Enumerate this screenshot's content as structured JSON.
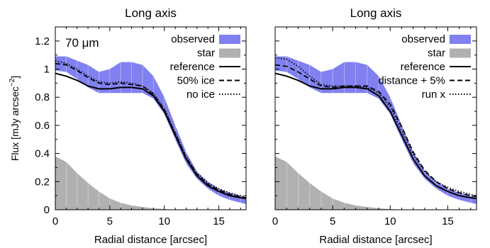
{
  "figure": {
    "colors": {
      "observed": "#8080f0",
      "star": "#b0b0b0",
      "lines": "#000000"
    }
  },
  "chart_data": [
    {
      "type": "line",
      "title": "Long axis",
      "annotation": "70 μm",
      "xlabel": "Radial distance [arcsec]",
      "ylabel": "Flux [mJy arcsec",
      "ylabel_sup": "−2",
      "ylabel_close": "]",
      "xlim": [
        0,
        17.5
      ],
      "ylim": [
        0,
        1.3
      ],
      "xticks": [
        0,
        5,
        10,
        15
      ],
      "xtick_labels": [
        "0",
        "5",
        "10",
        "15"
      ],
      "yticks": [
        0,
        0.2,
        0.4,
        0.6,
        0.8,
        1,
        1.2
      ],
      "ytick_labels": [
        "0",
        "0.2",
        "0.4",
        "0.6",
        "0.8",
        "1",
        "1.2"
      ],
      "legend_position": "top-right",
      "x": [
        0,
        1,
        2,
        3,
        4,
        5,
        6,
        7,
        8,
        9,
        10,
        11,
        12,
        13,
        14,
        15,
        16,
        17,
        17.5
      ],
      "bands": [
        {
          "name": "observed",
          "style": "band",
          "lower": [
            0.99,
            0.98,
            0.93,
            0.87,
            0.83,
            0.83,
            0.83,
            0.83,
            0.83,
            0.79,
            0.68,
            0.5,
            0.33,
            0.22,
            0.15,
            0.1,
            0.07,
            0.05,
            0.04
          ],
          "upper": [
            1.09,
            1.09,
            1.06,
            1.03,
            0.98,
            1.0,
            1.05,
            1.05,
            1.03,
            0.95,
            0.8,
            0.6,
            0.41,
            0.27,
            0.2,
            0.15,
            0.12,
            0.1,
            0.09
          ]
        },
        {
          "name": "star",
          "style": "fill",
          "upper": [
            0.38,
            0.34,
            0.26,
            0.19,
            0.13,
            0.08,
            0.05,
            0.03,
            0.02,
            0.01,
            0.005,
            0,
            0,
            0,
            0,
            0,
            0,
            0,
            0
          ]
        }
      ],
      "series": [
        {
          "name": "reference",
          "style": "solid",
          "values": [
            0.97,
            0.95,
            0.92,
            0.88,
            0.86,
            0.86,
            0.87,
            0.87,
            0.86,
            0.81,
            0.7,
            0.53,
            0.36,
            0.24,
            0.17,
            0.13,
            0.1,
            0.085,
            0.08
          ]
        },
        {
          "name": "50% ice",
          "style": "dashed",
          "values": [
            1.04,
            1.03,
            0.99,
            0.94,
            0.9,
            0.89,
            0.9,
            0.89,
            0.88,
            0.82,
            0.71,
            0.54,
            0.37,
            0.25,
            0.18,
            0.14,
            0.11,
            0.09,
            0.085
          ]
        },
        {
          "name": "no ice",
          "style": "dotted",
          "values": [
            1.06,
            1.04,
            1.0,
            0.95,
            0.91,
            0.9,
            0.91,
            0.9,
            0.88,
            0.83,
            0.72,
            0.55,
            0.38,
            0.26,
            0.19,
            0.15,
            0.12,
            0.1,
            0.09
          ]
        }
      ]
    },
    {
      "type": "line",
      "title": "Long axis",
      "xlabel": "Radial distance [arcsec]",
      "xlim": [
        0,
        17.5
      ],
      "ylim": [
        0,
        1.3
      ],
      "xticks": [
        0,
        5,
        10,
        15
      ],
      "xtick_labels": [
        "0",
        "5",
        "10",
        "15"
      ],
      "yticks": [
        0,
        0.2,
        0.4,
        0.6,
        0.8,
        1,
        1.2
      ],
      "legend_position": "top-right",
      "x": [
        0,
        1,
        2,
        3,
        4,
        5,
        6,
        7,
        8,
        9,
        10,
        11,
        12,
        13,
        14,
        15,
        16,
        17,
        17.5
      ],
      "bands": [
        {
          "name": "observed",
          "style": "band",
          "lower": [
            0.99,
            0.98,
            0.93,
            0.87,
            0.83,
            0.83,
            0.83,
            0.83,
            0.83,
            0.79,
            0.68,
            0.5,
            0.33,
            0.22,
            0.15,
            0.1,
            0.07,
            0.05,
            0.04
          ],
          "upper": [
            1.09,
            1.09,
            1.06,
            1.03,
            0.98,
            1.0,
            1.05,
            1.05,
            1.03,
            0.95,
            0.8,
            0.6,
            0.41,
            0.27,
            0.2,
            0.15,
            0.12,
            0.1,
            0.09
          ]
        },
        {
          "name": "star",
          "style": "fill",
          "upper": [
            0.38,
            0.34,
            0.26,
            0.19,
            0.13,
            0.08,
            0.05,
            0.03,
            0.02,
            0.01,
            0.005,
            0,
            0,
            0,
            0,
            0,
            0,
            0,
            0
          ]
        }
      ],
      "series": [
        {
          "name": "reference",
          "style": "solid",
          "values": [
            0.97,
            0.95,
            0.92,
            0.88,
            0.86,
            0.86,
            0.87,
            0.87,
            0.86,
            0.81,
            0.7,
            0.53,
            0.36,
            0.24,
            0.17,
            0.13,
            0.1,
            0.085,
            0.08
          ]
        },
        {
          "name": "distance + 5%",
          "style": "dashed",
          "values": [
            1.03,
            1.02,
            0.98,
            0.93,
            0.88,
            0.87,
            0.88,
            0.88,
            0.88,
            0.84,
            0.75,
            0.59,
            0.41,
            0.28,
            0.2,
            0.15,
            0.12,
            0.1,
            0.095
          ]
        },
        {
          "name": "run x",
          "style": "dotted",
          "values": [
            1.08,
            1.07,
            1.02,
            0.95,
            0.89,
            0.88,
            0.88,
            0.88,
            0.87,
            0.83,
            0.73,
            0.56,
            0.39,
            0.27,
            0.2,
            0.16,
            0.13,
            0.11,
            0.1
          ]
        }
      ]
    }
  ]
}
